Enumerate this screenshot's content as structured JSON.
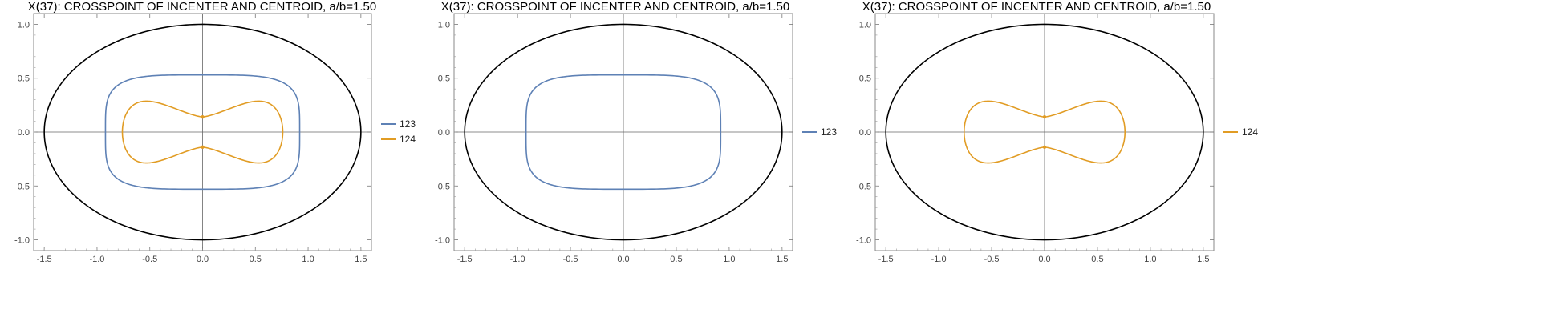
{
  "chart_data": [
    {
      "type": "line",
      "title": "X(37): CROSSPOINT OF INCENTER AND CENTROID, a/b=1.50",
      "xlabel": "",
      "ylabel": "",
      "xlim": [
        -1.6,
        1.6
      ],
      "ylim": [
        -1.1,
        1.1
      ],
      "xticks": [
        "-1.5",
        "-1.0",
        "-0.5",
        "0.0",
        "0.5",
        "1.0",
        "1.5"
      ],
      "yticks": [
        "-1.0",
        "-0.5",
        "0.0",
        "0.5",
        "1.0"
      ],
      "grid": false,
      "axes_lines_at_origin": true,
      "legend_position": "right",
      "reference_ellipse": {
        "a": 1.5,
        "b": 1.0,
        "color": "#000000"
      },
      "series": [
        {
          "name": "123",
          "color": "#5e81b5",
          "shape": "rounded-rectangle",
          "x_extent": [
            -0.92,
            0.92
          ],
          "y_extent": [
            -0.53,
            0.53
          ]
        },
        {
          "name": "124",
          "color": "#e19c24",
          "shape": "lemniscate-like with cusps",
          "x_extent": [
            -0.76,
            0.76
          ],
          "y_extent": [
            -0.25,
            0.25
          ],
          "cusp_y": 0.14
        }
      ]
    },
    {
      "type": "line",
      "title": "X(37): CROSSPOINT OF INCENTER AND CENTROID, a/b=1.50",
      "xlabel": "",
      "ylabel": "",
      "xlim": [
        -1.6,
        1.6
      ],
      "ylim": [
        -1.1,
        1.1
      ],
      "xticks": [
        "-1.5",
        "-1.0",
        "-0.5",
        "0.0",
        "0.5",
        "1.0",
        "1.5"
      ],
      "yticks": [
        "-1.0",
        "-0.5",
        "0.0",
        "0.5",
        "1.0"
      ],
      "grid": false,
      "axes_lines_at_origin": true,
      "legend_position": "right",
      "reference_ellipse": {
        "a": 1.5,
        "b": 1.0,
        "color": "#000000"
      },
      "series": [
        {
          "name": "123",
          "color": "#5e81b5",
          "shape": "rounded-rectangle",
          "x_extent": [
            -0.92,
            0.92
          ],
          "y_extent": [
            -0.53,
            0.53
          ]
        }
      ]
    },
    {
      "type": "line",
      "title": "X(37): CROSSPOINT OF INCENTER AND CENTROID, a/b=1.50",
      "xlabel": "",
      "ylabel": "",
      "xlim": [
        -1.6,
        1.6
      ],
      "ylim": [
        -1.1,
        1.1
      ],
      "xticks": [
        "-1.5",
        "-1.0",
        "-0.5",
        "0.0",
        "0.5",
        "1.0",
        "1.5"
      ],
      "yticks": [
        "-1.0",
        "-0.5",
        "0.0",
        "0.5",
        "1.0"
      ],
      "grid": false,
      "axes_lines_at_origin": true,
      "legend_position": "right",
      "reference_ellipse": {
        "a": 1.5,
        "b": 1.0,
        "color": "#000000"
      },
      "series": [
        {
          "name": "124",
          "color": "#e19c24",
          "shape": "lemniscate-like with cusps",
          "x_extent": [
            -0.76,
            0.76
          ],
          "y_extent": [
            -0.25,
            0.25
          ],
          "cusp_y": 0.14
        }
      ]
    }
  ]
}
